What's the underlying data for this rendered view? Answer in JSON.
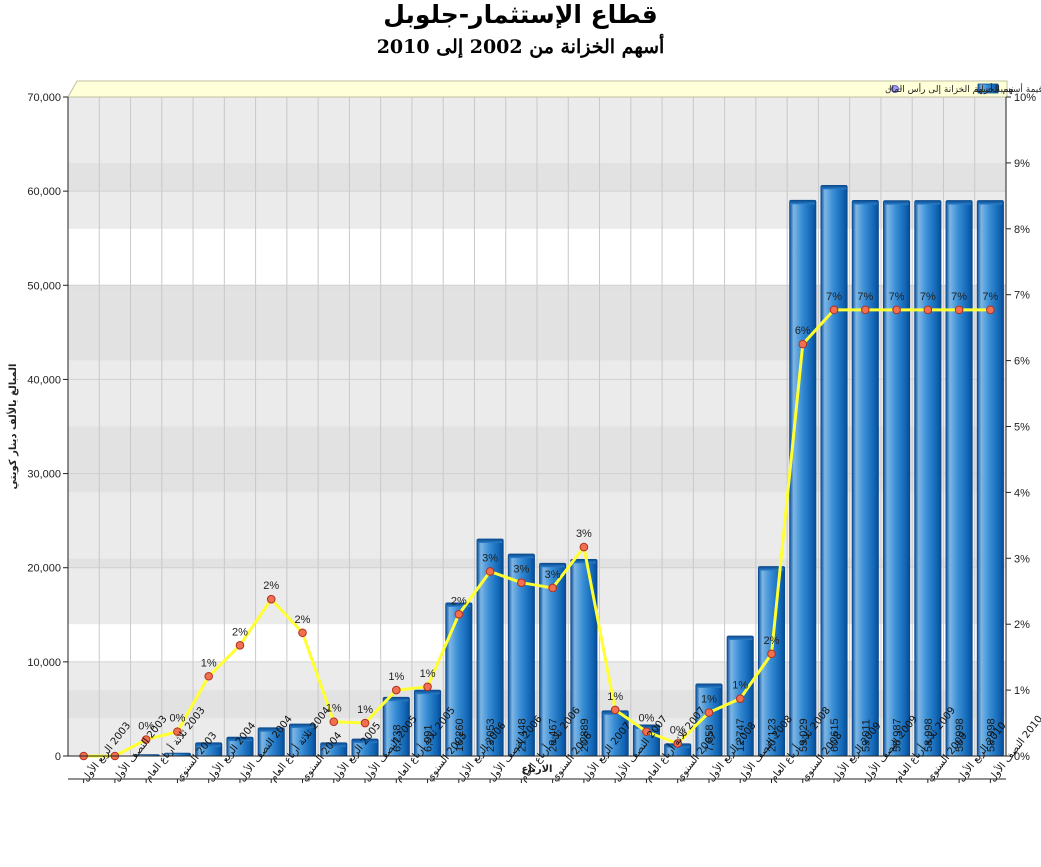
{
  "chart_data": {
    "type": "bar",
    "title": "قطاع الإستثمار-جلوبل",
    "subtitle": "أسهم الخزانة من 2002 إلى 2010",
    "xlabel": "الارباع",
    "ylabel": "المبالغ بالألف دينار كويتي",
    "ylim": [
      0,
      70000
    ],
    "y2lim": [
      0,
      10
    ],
    "grid": true,
    "legend_position": "top-right",
    "categories": [
      "2003 الربع الأول",
      "2003 النصف الأول",
      "2003 ثلاثة أرباع العام",
      "2003 السنوي",
      "2004 الربع الأول",
      "2004 النصف الأول",
      "2004 ثلاثة أرباع العام",
      "2004 السنوي",
      "2005 الربع الأول",
      "2005 النصف الأول",
      "2005 ثلاثة أرباع العام",
      "2005 السنوي",
      "2006 الربع الأول",
      "2006 النصف الأول",
      "2006 ثلاثة أرباع العام",
      "2006 السنوي",
      "2007 الربع الأول",
      "2007 النصف الأول",
      "2007 ثلاثة أرباع العام",
      "2007 السنوي",
      "2008 الربع الأول",
      "2008 النصف الأول",
      "2008 ثلاثة أرباع العام",
      "2008 السنوي",
      "2009 الربع الأول",
      "2009 النصف الأول",
      "2009 ثلاثة أرباع العام",
      "2009 السنوي",
      "2010 الربع الأول",
      "2010 النصف الأول"
    ],
    "series": [
      {
        "name": "قيمة أسهم الخزانة",
        "type": "bar",
        "axis": "left",
        "color": "#1a78c4",
        "values": [
          0,
          0,
          150,
          300,
          1400,
          2000,
          3000,
          3400,
          1400,
          1800,
          6238,
          6991,
          16260,
          23053,
          21448,
          20467,
          20889,
          4800,
          3300,
          1300,
          7658,
          12747,
          20123,
          59029,
          60615,
          59011,
          58987,
          58998,
          58998,
          58998
        ],
        "labels": [
          "",
          "",
          "",
          "",
          "",
          "",
          "",
          "",
          "",
          "",
          "6,238",
          "6,991",
          "16,260",
          "23,053",
          "21,448",
          "20,467",
          "20,889",
          "",
          "",
          "",
          "7,658",
          "12,747",
          "20,123",
          "59,029",
          "60,615",
          "59,011",
          "58,987",
          "58,998",
          "58,998",
          "58,998"
        ]
      },
      {
        "name": "نسبة أسهم الخزانة إلى رأس المال",
        "type": "line",
        "axis": "right",
        "color": "#ffff33",
        "values": [
          0,
          0,
          0.25,
          0.37,
          1.21,
          1.68,
          2.38,
          1.87,
          0.52,
          0.5,
          1.0,
          1.05,
          2.15,
          2.8,
          2.63,
          2.55,
          3.17,
          0.7,
          0.37,
          0.19,
          0.66,
          0.87,
          1.55,
          6.25,
          6.77,
          6.77,
          6.77,
          6.77,
          6.77,
          6.77
        ],
        "labels": [
          "",
          "",
          "0%",
          "0%",
          "1%",
          "2%",
          "2%",
          "2%",
          "1%",
          "1%",
          "1%",
          "1%",
          "2%",
          "3%",
          "3%",
          "3%",
          "3%",
          "1%",
          "0%",
          "0%",
          "1%",
          "1%",
          "2%",
          "6%",
          "7%",
          "7%",
          "7%",
          "7%",
          "7%",
          "7%"
        ]
      }
    ],
    "y_ticks": [
      "0",
      "10,000",
      "20,000",
      "30,000",
      "40,000",
      "50,000",
      "60,000",
      "70,000"
    ],
    "y2_ticks": [
      "0%",
      "1%",
      "2%",
      "3%",
      "4%",
      "5%",
      "6%",
      "7%",
      "8%",
      "9%",
      "10%"
    ]
  }
}
